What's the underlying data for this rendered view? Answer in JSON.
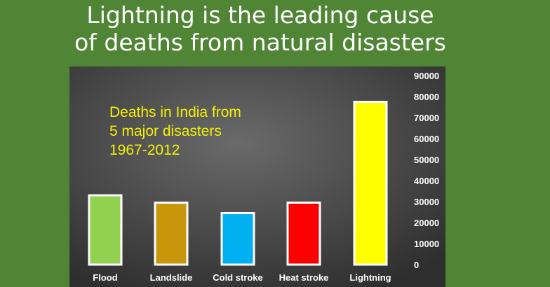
{
  "title": {
    "line1": "Lightning is the leading cause",
    "line2": "of deaths from natural disasters"
  },
  "chart_data": {
    "type": "bar",
    "categories": [
      "Flood",
      "Landslide",
      "Cold stroke",
      "Heat stroke",
      "Lightning"
    ],
    "values": [
      33000,
      29500,
      24500,
      29500,
      77500
    ],
    "colors": [
      "#92d050",
      "#c8960a",
      "#00b0f0",
      "#ff0000",
      "#ffff00"
    ],
    "annotation": [
      "Deaths in India from",
      "5 major disasters",
      "1967-2012"
    ],
    "y_axis_position": "right",
    "ylim": [
      0,
      90000
    ],
    "yticks": [
      "0",
      "10000",
      "20000",
      "30000",
      "40000",
      "50000",
      "60000",
      "70000",
      "80000",
      "90000"
    ],
    "grid": false,
    "legend": "none"
  }
}
